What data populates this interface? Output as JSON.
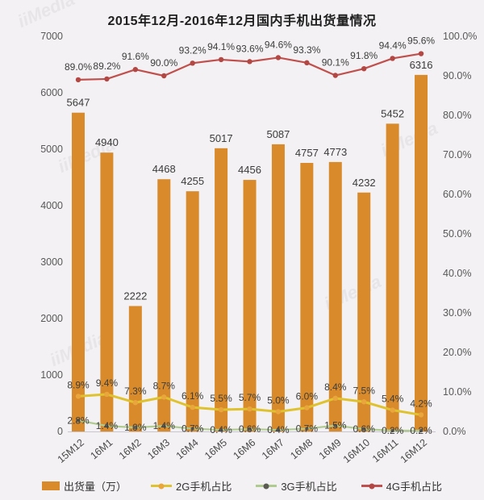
{
  "title": "2015年12月-2016年12月国内手机出货量情况",
  "watermark": "iiMedia",
  "chart_data": {
    "type": "bar+line",
    "title": "2015年12月-2016年12月国内手机出货量情况",
    "categories": [
      "15M12",
      "16M1",
      "16M2",
      "16M3",
      "16M4",
      "16M5",
      "16M6",
      "16M7",
      "16M8",
      "16M9",
      "16M10",
      "16M11",
      "16M12"
    ],
    "series": [
      {
        "name": "出货量（万）",
        "type": "bar",
        "axis": "left",
        "color": "#d98a2b",
        "values": [
          5647,
          4940,
          2222,
          4468,
          4255,
          5017,
          4456,
          5087,
          4757,
          4773,
          4232,
          5452,
          6316
        ]
      },
      {
        "name": "2G手机占比",
        "type": "line",
        "axis": "right",
        "color": "#dfc22f",
        "marker_color": "#e9a63c",
        "label_offset": -10,
        "values": [
          8.9,
          9.4,
          7.3,
          8.7,
          6.1,
          5.5,
          5.7,
          5.0,
          6.0,
          8.4,
          7.5,
          5.4,
          4.2
        ]
      },
      {
        "name": "3G手机占比",
        "type": "line",
        "axis": "right",
        "color": "#afcb8f",
        "marker_color": "#5a5a52",
        "label_offset": 4,
        "values": [
          2.8,
          1.4,
          1.0,
          1.4,
          0.7,
          0.4,
          0.6,
          0.4,
          0.7,
          1.5,
          0.6,
          0.2,
          0.2
        ]
      },
      {
        "name": "4G手机占比",
        "type": "line",
        "axis": "right",
        "color": "#c0504d",
        "marker_color": "#b24744",
        "label_offset": -12,
        "values": [
          89.0,
          89.2,
          91.6,
          90.0,
          93.2,
          94.1,
          93.6,
          94.6,
          93.3,
          90.1,
          91.8,
          94.4,
          95.6
        ]
      }
    ],
    "left_axis": {
      "min": 0,
      "max": 7000,
      "ticks": [
        "0",
        "1000",
        "2000",
        "3000",
        "4000",
        "5000",
        "6000",
        "7000"
      ]
    },
    "right_axis": {
      "min": 0,
      "max": 100,
      "ticks": [
        "0.0%",
        "10.0%",
        "20.0%",
        "30.0%",
        "40.0%",
        "50.0%",
        "60.0%",
        "70.0%",
        "80.0%",
        "90.0%",
        "100.0%"
      ]
    },
    "legend_position": "bottom",
    "grid": false
  }
}
